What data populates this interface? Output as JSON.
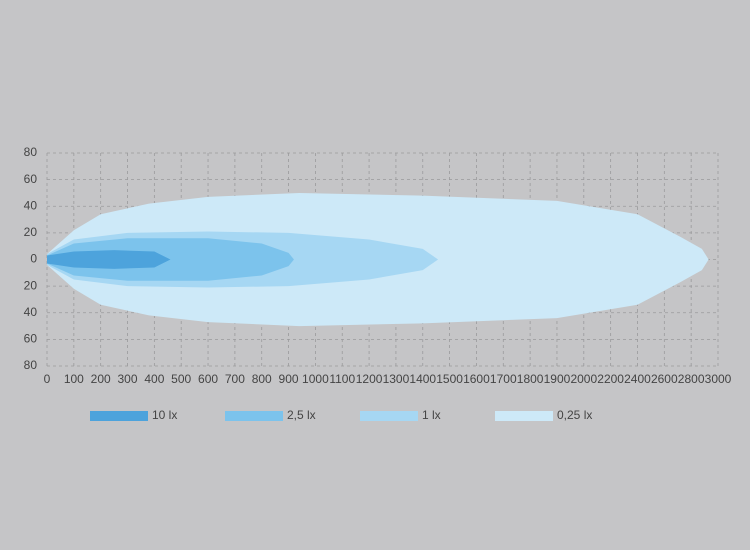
{
  "chart_data": {
    "type": "beam",
    "xticks": [
      0,
      100,
      200,
      300,
      400,
      500,
      600,
      700,
      800,
      900,
      1000,
      1100,
      1200,
      1300,
      1400,
      1500,
      1600,
      1700,
      1800,
      1900,
      2000,
      2200,
      2400,
      2600,
      2800,
      3000
    ],
    "xlim": [
      0,
      3000
    ],
    "ylim": [
      -80,
      80
    ],
    "yticks": [
      80,
      60,
      40,
      20,
      0,
      {
        "value": -20,
        "label": "20"
      },
      {
        "value": -40,
        "label": "40"
      },
      {
        "value": -60,
        "label": "60"
      },
      {
        "value": -80,
        "label": "80"
      }
    ],
    "grid": true,
    "series": [
      {
        "name": "0,25 lx",
        "color": "#cde9f8",
        "x": [
          0,
          100,
          200,
          380,
          600,
          940,
          1400,
          1900,
          2400,
          2720,
          2880,
          2930
        ],
        "values": [
          4,
          22,
          34,
          42,
          47,
          50,
          48,
          44,
          34,
          17,
          8,
          0
        ]
      },
      {
        "name": "1 lx",
        "color": "#a6d7f3",
        "x": [
          0,
          100,
          300,
          600,
          900,
          1200,
          1400,
          1457
        ],
        "values": [
          4,
          15,
          20,
          21,
          20,
          15,
          8,
          0
        ]
      },
      {
        "name": "2,5 lx",
        "color": "#7cc3ec",
        "x": [
          0,
          100,
          300,
          600,
          800,
          900,
          920
        ],
        "values": [
          3,
          12,
          16,
          16,
          12,
          5,
          0
        ]
      },
      {
        "name": "10 lx",
        "color": "#4da3dc",
        "x": [
          0,
          100,
          250,
          400,
          460
        ],
        "values": [
          3,
          6,
          7,
          6,
          0
        ]
      }
    ]
  }
}
